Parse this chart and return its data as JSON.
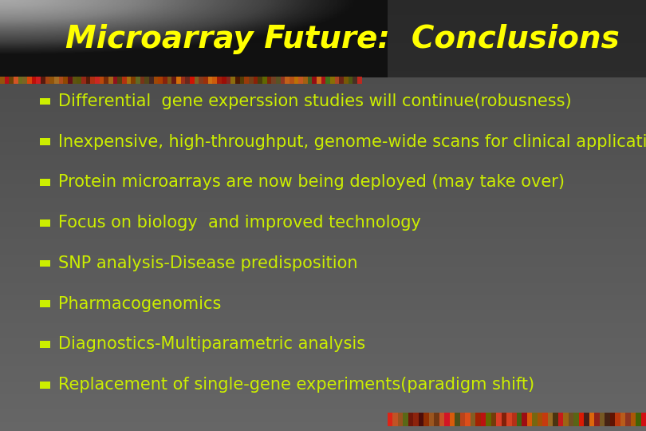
{
  "title": "Microarray Future:  Conclusions",
  "title_color": "#FFFF00",
  "title_fontsize": 28,
  "bullet_color": "#CCEE00",
  "text_color": "#CCEE00",
  "text_fontsize": 15,
  "bullet_items": [
    "Differential  gene experssion studies will continue(robusness)",
    "Inexpensive, high-throughput, genome-wide scans for clinical applications",
    "Protein microarrays are now being deployed (may take over)",
    "Focus on biology  and improved technology",
    "SNP analysis-Disease predisposition",
    "Pharmacogenomics",
    "Diagnostics-Multiparametric analysis",
    "Replacement of single-gene experiments(paradigm shift)"
  ]
}
